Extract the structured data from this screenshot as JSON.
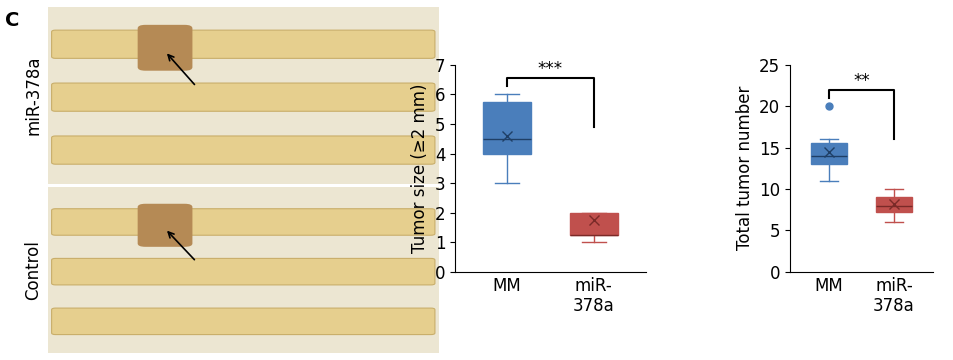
{
  "panel_label": "C",
  "photo": {
    "row_labels": [
      "miR-378a",
      "Control"
    ]
  },
  "chart_data": [
    {
      "type": "box",
      "ylabel": "Tumor size (≥2 mm)",
      "categories": [
        "MM",
        "miR-\n378a"
      ],
      "colors": [
        "#4a7ebb",
        "#c0504d"
      ],
      "whislo": [
        3,
        1
      ],
      "q1": [
        4,
        1.25
      ],
      "med": [
        4.5,
        1.25
      ],
      "q3": [
        5.75,
        2
      ],
      "whishi": [
        6,
        2
      ],
      "mean": [
        4.6,
        1.75
      ],
      "fliers": [
        [],
        []
      ],
      "significance": "***",
      "ylim": [
        0,
        7
      ],
      "yticks": [
        0,
        1,
        2,
        3,
        4,
        5,
        6,
        7
      ]
    },
    {
      "type": "box",
      "ylabel": "Total tumor number",
      "categories": [
        "MM",
        "miR-\n378a"
      ],
      "colors": [
        "#4a7ebb",
        "#c0504d"
      ],
      "whislo": [
        11,
        6
      ],
      "q1": [
        13,
        7.25
      ],
      "med": [
        14,
        8
      ],
      "q3": [
        15.5,
        9
      ],
      "whishi": [
        16,
        10
      ],
      "mean": [
        14.5,
        8.2
      ],
      "fliers": [
        [
          20
        ],
        []
      ],
      "significance": "**",
      "ylim": [
        0,
        25
      ],
      "yticks": [
        0,
        5,
        10,
        15,
        20,
        25
      ]
    }
  ]
}
